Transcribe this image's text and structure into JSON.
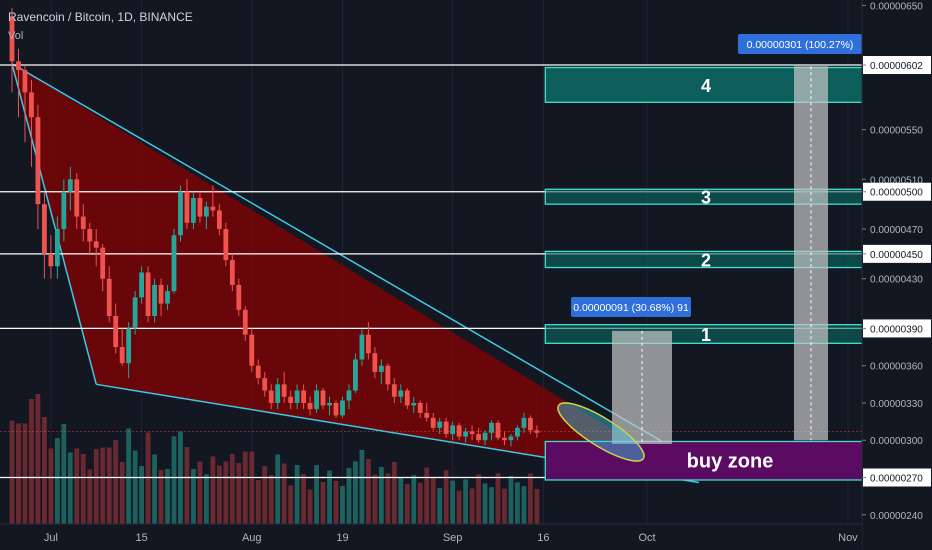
{
  "header": {
    "title": "Ravencoin / Bitcoin, 1D, BINANCE",
    "volume_label": "Vol"
  },
  "colors": {
    "background": "#131722",
    "bull": "#26a69a",
    "bear": "#ef5350",
    "wedge_fill": "#8b0000",
    "wedge_line": "#3fc8e4",
    "zone_fill": "#0b6b64",
    "buy_zone_fill": "#5b0b62",
    "measure_label_bg": "#2f6fdc"
  },
  "chart_data": {
    "type": "candlestick",
    "title": "Ravencoin / Bitcoin, 1D, BINANCE",
    "x_ticks": [
      "Jul",
      "15",
      "Aug",
      "19",
      "Sep",
      "16",
      "Oct",
      "Nov"
    ],
    "x_tick_days": [
      6,
      20,
      37,
      51,
      68,
      82,
      98,
      129
    ],
    "y_ticks": [
      "0.00000650",
      "0.00000602",
      "0.00000550",
      "0.00000510",
      "0.00000500",
      "0.00000470",
      "0.00000450",
      "0.00000430",
      "0.00000390",
      "0.00000360",
      "0.00000330",
      "0.00000300",
      "0.00000270",
      "0.00000240"
    ],
    "ylim": [
      2.35e-06,
      6.55e-06
    ],
    "horizontal_levels": [
      6.02e-06,
      5e-06,
      4.5e-06,
      3.9e-06,
      2.7e-06
    ],
    "zones": [
      {
        "label": "4",
        "low": 5.72e-06,
        "high": 6e-06
      },
      {
        "label": "3",
        "low": 4.9e-06,
        "high": 5.02e-06
      },
      {
        "label": "2",
        "low": 4.39e-06,
        "high": 4.52e-06
      },
      {
        "label": "1",
        "low": 3.78e-06,
        "high": 3.93e-06
      },
      {
        "label": "buy zone",
        "low": 2.68e-06,
        "high": 2.99e-06
      }
    ],
    "measures": [
      {
        "label": "0.00000091 (30.68%) 91",
        "start": 2.97e-06,
        "end": 3.88e-06,
        "day": 99
      },
      {
        "label": "0.00000301 (100.27%)",
        "start": 3e-06,
        "end": 6.01e-06,
        "day": 131
      }
    ],
    "wedge": [
      [
        0,
        6.03e-06
      ],
      [
        13,
        3.45e-06
      ],
      [
        106,
        2.66e-06
      ]
    ],
    "wedge_upper": [
      [
        0,
        6.03e-06
      ],
      [
        101,
        2.97e-06
      ]
    ],
    "annotation_ellipse": {
      "day": 96,
      "price": 3.01e-06
    },
    "candles": [
      {
        "o": 640,
        "h": 648,
        "l": 580,
        "c": 605
      },
      {
        "o": 605,
        "h": 615,
        "l": 560,
        "c": 598
      },
      {
        "o": 598,
        "h": 602,
        "l": 540,
        "c": 580
      },
      {
        "o": 580,
        "h": 590,
        "l": 520,
        "c": 560
      },
      {
        "o": 560,
        "h": 570,
        "l": 470,
        "c": 490
      },
      {
        "o": 490,
        "h": 500,
        "l": 430,
        "c": 450
      },
      {
        "o": 450,
        "h": 465,
        "l": 430,
        "c": 440
      },
      {
        "o": 440,
        "h": 480,
        "l": 430,
        "c": 470
      },
      {
        "o": 470,
        "h": 510,
        "l": 460,
        "c": 500
      },
      {
        "o": 500,
        "h": 520,
        "l": 485,
        "c": 510
      },
      {
        "o": 510,
        "h": 515,
        "l": 470,
        "c": 480
      },
      {
        "o": 480,
        "h": 490,
        "l": 460,
        "c": 470
      },
      {
        "o": 470,
        "h": 475,
        "l": 450,
        "c": 460
      },
      {
        "o": 460,
        "h": 470,
        "l": 440,
        "c": 455
      },
      {
        "o": 455,
        "h": 458,
        "l": 420,
        "c": 430
      },
      {
        "o": 430,
        "h": 440,
        "l": 395,
        "c": 400
      },
      {
        "o": 400,
        "h": 410,
        "l": 370,
        "c": 375
      },
      {
        "o": 375,
        "h": 390,
        "l": 360,
        "c": 362
      },
      {
        "o": 362,
        "h": 395,
        "l": 350,
        "c": 390
      },
      {
        "o": 390,
        "h": 420,
        "l": 385,
        "c": 415
      },
      {
        "o": 415,
        "h": 440,
        "l": 410,
        "c": 435
      },
      {
        "o": 435,
        "h": 440,
        "l": 395,
        "c": 400
      },
      {
        "o": 400,
        "h": 430,
        "l": 395,
        "c": 425
      },
      {
        "o": 425,
        "h": 430,
        "l": 400,
        "c": 410
      },
      {
        "o": 410,
        "h": 425,
        "l": 405,
        "c": 420
      },
      {
        "o": 420,
        "h": 470,
        "l": 418,
        "c": 465
      },
      {
        "o": 465,
        "h": 505,
        "l": 460,
        "c": 500
      },
      {
        "o": 500,
        "h": 510,
        "l": 470,
        "c": 475
      },
      {
        "o": 475,
        "h": 500,
        "l": 470,
        "c": 495
      },
      {
        "o": 495,
        "h": 500,
        "l": 475,
        "c": 480
      },
      {
        "o": 480,
        "h": 492,
        "l": 470,
        "c": 488
      },
      {
        "o": 488,
        "h": 505,
        "l": 480,
        "c": 485
      },
      {
        "o": 485,
        "h": 490,
        "l": 465,
        "c": 470
      },
      {
        "o": 470,
        "h": 475,
        "l": 440,
        "c": 445
      },
      {
        "o": 445,
        "h": 450,
        "l": 420,
        "c": 425
      },
      {
        "o": 425,
        "h": 430,
        "l": 400,
        "c": 405
      },
      {
        "o": 405,
        "h": 408,
        "l": 380,
        "c": 385
      },
      {
        "o": 385,
        "h": 390,
        "l": 355,
        "c": 360
      },
      {
        "o": 360,
        "h": 365,
        "l": 345,
        "c": 350
      },
      {
        "o": 350,
        "h": 355,
        "l": 335,
        "c": 340
      },
      {
        "o": 340,
        "h": 345,
        "l": 325,
        "c": 330
      },
      {
        "o": 330,
        "h": 350,
        "l": 325,
        "c": 345
      },
      {
        "o": 345,
        "h": 355,
        "l": 330,
        "c": 335
      },
      {
        "o": 335,
        "h": 340,
        "l": 325,
        "c": 330
      },
      {
        "o": 330,
        "h": 345,
        "l": 325,
        "c": 340
      },
      {
        "o": 340,
        "h": 345,
        "l": 325,
        "c": 330
      },
      {
        "o": 330,
        "h": 335,
        "l": 320,
        "c": 325
      },
      {
        "o": 325,
        "h": 345,
        "l": 322,
        "c": 340
      },
      {
        "o": 340,
        "h": 342,
        "l": 325,
        "c": 328
      },
      {
        "o": 328,
        "h": 335,
        "l": 320,
        "c": 330
      },
      {
        "o": 330,
        "h": 332,
        "l": 318,
        "c": 320
      },
      {
        "o": 320,
        "h": 335,
        "l": 318,
        "c": 332
      },
      {
        "o": 332,
        "h": 345,
        "l": 325,
        "c": 340
      },
      {
        "o": 340,
        "h": 370,
        "l": 338,
        "c": 365
      },
      {
        "o": 365,
        "h": 390,
        "l": 360,
        "c": 385
      },
      {
        "o": 385,
        "h": 395,
        "l": 365,
        "c": 370
      },
      {
        "o": 370,
        "h": 375,
        "l": 350,
        "c": 355
      },
      {
        "o": 355,
        "h": 365,
        "l": 345,
        "c": 360
      },
      {
        "o": 360,
        "h": 362,
        "l": 340,
        "c": 345
      },
      {
        "o": 345,
        "h": 350,
        "l": 330,
        "c": 335
      },
      {
        "o": 335,
        "h": 345,
        "l": 330,
        "c": 340
      },
      {
        "o": 340,
        "h": 342,
        "l": 325,
        "c": 328
      },
      {
        "o": 328,
        "h": 335,
        "l": 322,
        "c": 330
      },
      {
        "o": 330,
        "h": 332,
        "l": 318,
        "c": 322
      },
      {
        "o": 322,
        "h": 330,
        "l": 315,
        "c": 318
      },
      {
        "o": 318,
        "h": 322,
        "l": 308,
        "c": 310
      },
      {
        "o": 310,
        "h": 318,
        "l": 305,
        "c": 315
      },
      {
        "o": 315,
        "h": 318,
        "l": 302,
        "c": 305
      },
      {
        "o": 305,
        "h": 315,
        "l": 300,
        "c": 312
      },
      {
        "o": 312,
        "h": 314,
        "l": 300,
        "c": 303
      },
      {
        "o": 303,
        "h": 310,
        "l": 298,
        "c": 307
      },
      {
        "o": 307,
        "h": 312,
        "l": 300,
        "c": 305
      },
      {
        "o": 305,
        "h": 310,
        "l": 298,
        "c": 300
      },
      {
        "o": 300,
        "h": 308,
        "l": 296,
        "c": 306
      },
      {
        "o": 306,
        "h": 316,
        "l": 300,
        "c": 314
      },
      {
        "o": 314,
        "h": 316,
        "l": 300,
        "c": 302
      },
      {
        "o": 302,
        "h": 307,
        "l": 296,
        "c": 300
      },
      {
        "o": 300,
        "h": 305,
        "l": 295,
        "c": 303
      },
      {
        "o": 303,
        "h": 312,
        "l": 300,
        "c": 310
      },
      {
        "o": 310,
        "h": 322,
        "l": 306,
        "c": 318
      },
      {
        "o": 318,
        "h": 320,
        "l": 305,
        "c": 308
      },
      {
        "o": 308,
        "h": 312,
        "l": 302,
        "c": 306
      }
    ],
    "price_scale": "candle o/h/l/c values are in units of 0.00000001 BTC"
  }
}
